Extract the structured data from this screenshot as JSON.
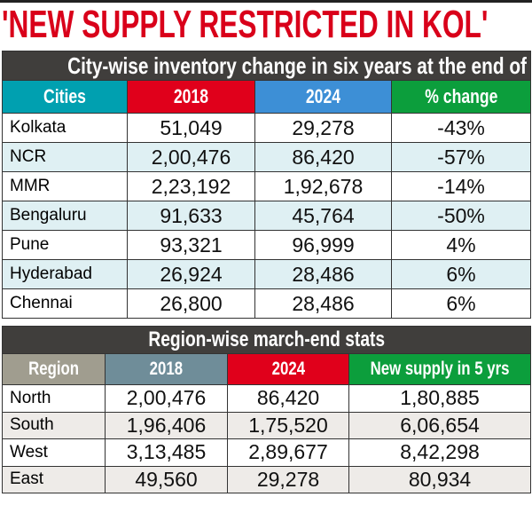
{
  "headline": "'NEW SUPPLY RESTRICTED IN KOL'",
  "colors": {
    "headline": "#d9001a",
    "caption_bg": "#403e3c",
    "cities_header": "#00a0b0",
    "red_header": "#e0001b",
    "blue_header": "#3d8fd6",
    "green_header": "#0c9e3c",
    "region_header": "#a09d8f",
    "slate_header": "#6f8d99"
  },
  "chart_data": [
    {
      "type": "table",
      "title": "City-wise inventory change in six years at the end of March",
      "columns": [
        "Cities",
        "2018",
        "2024",
        "% change"
      ],
      "rows": [
        [
          "Kolkata",
          "51,049",
          "29,278",
          "-43%"
        ],
        [
          "NCR",
          "2,00,476",
          "86,420",
          "-57%"
        ],
        [
          "MMR",
          "2,23,192",
          "1,92,678",
          "-14%"
        ],
        [
          "Bengaluru",
          "91,633",
          "45,764",
          "-50%"
        ],
        [
          "Pune",
          "93,321",
          "96,999",
          "4%"
        ],
        [
          "Hyderabad",
          "26,924",
          "28,486",
          "6%"
        ],
        [
          "Chennai",
          "26,800",
          "28,486",
          "6%"
        ]
      ]
    },
    {
      "type": "table",
      "title": "Region-wise march-end stats",
      "columns": [
        "Region",
        "2018",
        "2024",
        "New supply in 5 yrs"
      ],
      "rows": [
        [
          "North",
          "2,00,476",
          "86,420",
          "1,80,885"
        ],
        [
          "South",
          "1,96,406",
          "1,75,520",
          "6,06,654"
        ],
        [
          "West",
          "3,13,485",
          "2,89,677",
          "8,42,298"
        ],
        [
          "East",
          "49,560",
          "29,278",
          "80,934"
        ]
      ]
    }
  ]
}
